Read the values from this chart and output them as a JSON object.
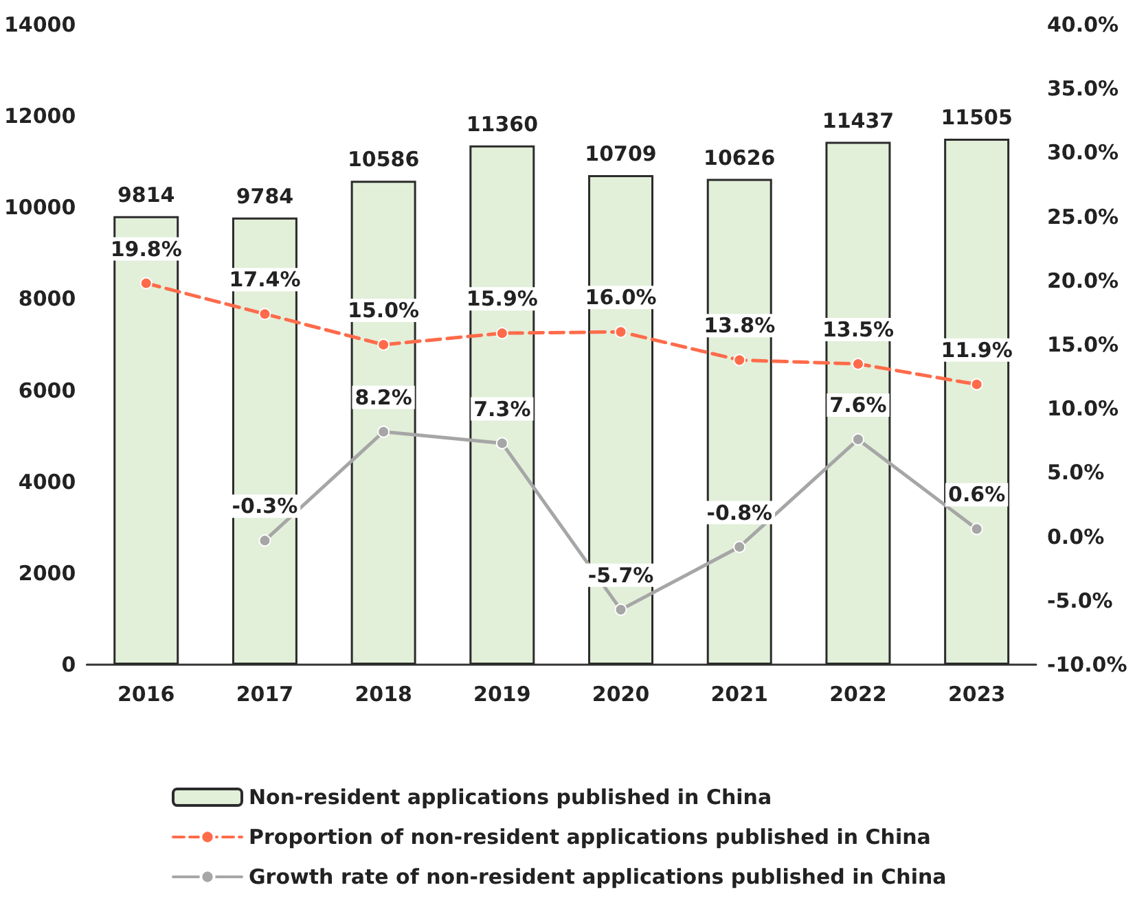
{
  "chart_data": {
    "type": "bar",
    "categories": [
      "2016",
      "2017",
      "2018",
      "2019",
      "2020",
      "2021",
      "2022",
      "2023"
    ],
    "series": [
      {
        "name": "Non-resident applications published in China",
        "color": "#e2efd9",
        "values": [
          9814,
          9784,
          10586,
          11360,
          10709,
          10626,
          11437,
          11505
        ],
        "data_labels": true
      },
      {
        "type": "line",
        "axis": "y2",
        "name": "Proportion of non-resident applications published in China",
        "color": "#ff6b4a",
        "line_style": "dashed",
        "marker": "circle",
        "values": [
          19.8,
          17.4,
          15.0,
          15.9,
          16.0,
          13.8,
          13.5,
          11.9
        ],
        "value_labels": [
          "19.8%",
          "17.4%",
          "15.0%",
          "15.9%",
          "16.0%",
          "13.8%",
          "13.5%",
          "11.9%"
        ]
      },
      {
        "type": "line",
        "axis": "y2",
        "name": "Growth rate of non-resident applications published in China",
        "color": "#a6a6a6",
        "line_style": "solid",
        "marker": "circle",
        "values": [
          null,
          -0.3,
          8.2,
          7.3,
          -5.7,
          -0.8,
          7.6,
          0.6
        ],
        "value_labels": [
          null,
          "-0.3%",
          "8.2%",
          "7.3%",
          "-5.7%",
          "-0.8%",
          "7.6%",
          "0.6%"
        ]
      }
    ],
    "ylim": [
      0,
      14000
    ],
    "yticks": [
      0,
      2000,
      4000,
      6000,
      8000,
      10000,
      12000,
      14000
    ],
    "y2lim": [
      -10,
      40
    ],
    "y2ticks": [
      {
        "value": -10,
        "label": "-10.0%"
      },
      {
        "value": -5,
        "label": "-5.0%"
      },
      {
        "value": 0,
        "label": "0.0%"
      },
      {
        "value": 5,
        "label": "5.0%"
      },
      {
        "value": 10,
        "label": "10.0%"
      },
      {
        "value": 15,
        "label": "15.0%"
      },
      {
        "value": 20,
        "label": "20.0%"
      },
      {
        "value": 25,
        "label": "25.0%"
      },
      {
        "value": 30,
        "label": "30.0%"
      },
      {
        "value": 35,
        "label": "35.0%"
      },
      {
        "value": 40,
        "label": "40.0%"
      }
    ],
    "grid": false,
    "legend": "bottom"
  }
}
